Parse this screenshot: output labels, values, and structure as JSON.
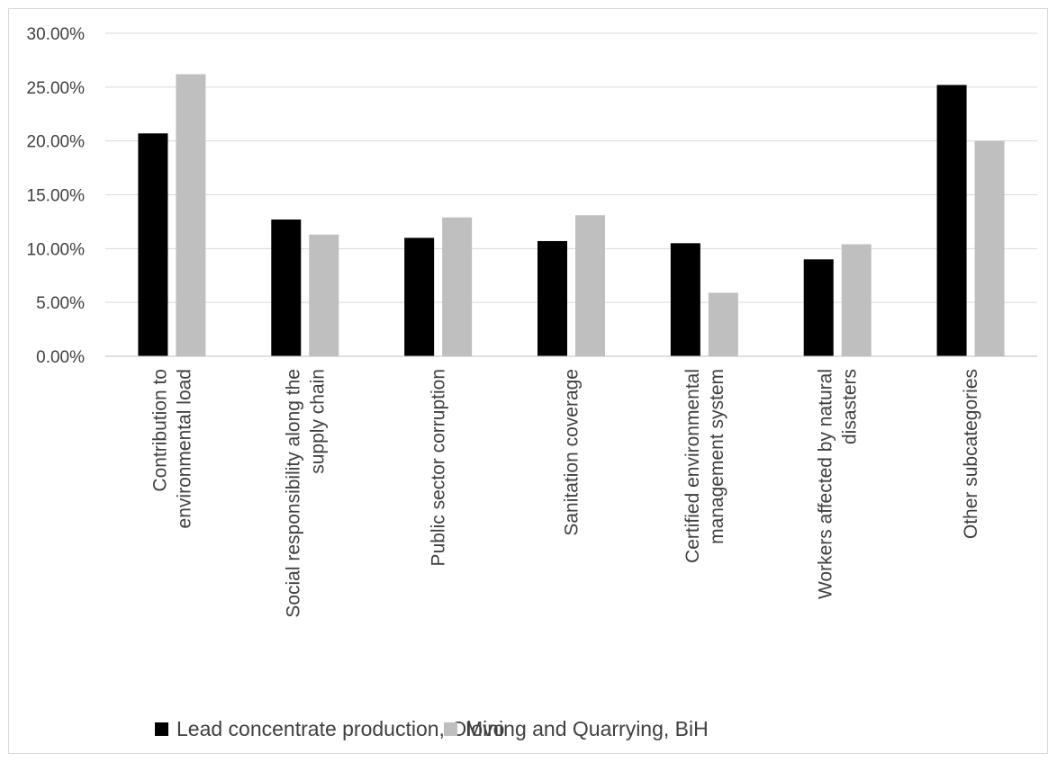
{
  "chart_data": {
    "type": "bar",
    "categories": [
      [
        "Contribution to",
        "environmental load"
      ],
      [
        "Social responsibility along the",
        "supply chain"
      ],
      [
        "Public sector corruption"
      ],
      [
        "Sanitation coverage"
      ],
      [
        "Certified environmental",
        "management system"
      ],
      [
        "Workers affected by natural",
        "disasters"
      ],
      [
        "Other subcategories"
      ]
    ],
    "series": [
      {
        "name": "Lead concentrate production, Olovo",
        "color": "#000000",
        "values": [
          20.7,
          12.7,
          11.0,
          10.7,
          10.5,
          9.0,
          25.2
        ]
      },
      {
        "name": "Mining and Quarrying, BiH",
        "color": "#bfbfbf",
        "values": [
          26.2,
          11.3,
          12.9,
          13.1,
          5.9,
          10.4,
          20.0
        ]
      }
    ],
    "ylim": [
      0,
      30
    ],
    "yticks": [
      "0.00%",
      "5.00%",
      "10.00%",
      "15.00%",
      "20.00%",
      "25.00%",
      "30.00%"
    ],
    "grid": true,
    "legend_position": "bottom",
    "title": "",
    "xlabel": "",
    "ylabel": ""
  }
}
